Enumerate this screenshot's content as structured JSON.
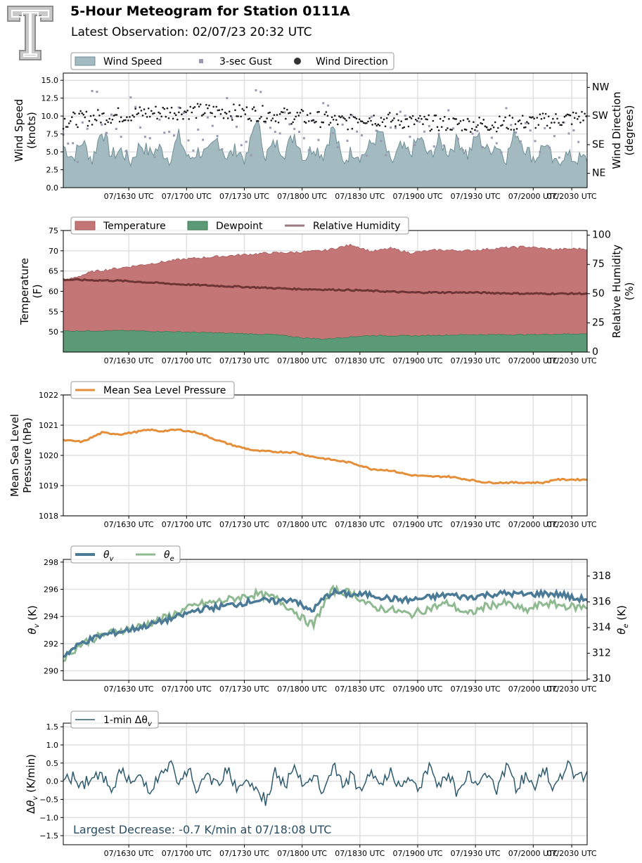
{
  "header": {
    "title": "5-Hour Meteogram for Station 0111A",
    "subtitle": "Latest Observation: 02/07/23 20:32 UTC",
    "logo_letter": "T"
  },
  "colors": {
    "wind_speed": "#a3bac0",
    "wind_speed_edge": "#6f8f97",
    "gust": "#9a98b3",
    "wind_dir": "#1a1a1a",
    "temperature": "#c47576",
    "dewpoint": "#5a9a76",
    "rh": "#6e3535",
    "mslp": "#e58e3a",
    "theta_v": "#4a7a96",
    "theta_e": "#8fba91",
    "dtheta": "#2e5a6e",
    "grid": "#e0e0e0",
    "annotation": "#2b4e62"
  },
  "chart_data": [
    {
      "id": "wind",
      "type": "area",
      "ylabel": "Wind Speed\n(knots)",
      "ylabel2": "Wind Direction\n(degrees)",
      "ylim": [
        0,
        16
      ],
      "yticks": [
        "0.0",
        "2.5",
        "5.0",
        "7.5",
        "10.0",
        "12.5",
        "15.0"
      ],
      "y2lim": [
        0,
        360
      ],
      "y2ticks": [
        "NE",
        "SE",
        "SW",
        "NW"
      ],
      "y2tick_values": [
        45,
        135,
        225,
        315
      ],
      "xtick_labels": [
        "07/1630 UTC",
        "07/1700 UTC",
        "07/1730 UTC",
        "07/1800 UTC",
        "07/1830 UTC",
        "07/1900 UTC",
        "07/1930 UTC",
        "07/2000 UTC",
        "07/2030 UTC"
      ],
      "legend": [
        "Wind Speed",
        "3-sec Gust",
        "Wind Direction"
      ],
      "legend_position": "top-left",
      "grid": true,
      "series": [
        {
          "name": "Wind Speed",
          "x_minutes": [
            0,
            5,
            10,
            15,
            20,
            25,
            30,
            35,
            40,
            45,
            50,
            55,
            60,
            65,
            70,
            75,
            80,
            85,
            90,
            95,
            100,
            105,
            110,
            115,
            120,
            125,
            130,
            135,
            140,
            145,
            150,
            155,
            160,
            165,
            170,
            175,
            180,
            185,
            190,
            195,
            200,
            205,
            210,
            215,
            220,
            225,
            230,
            235,
            240,
            245,
            250,
            255,
            260,
            265
          ],
          "values": [
            5.8,
            4.2,
            6.5,
            3.8,
            8.2,
            4.5,
            5.2,
            3.6,
            6.1,
            4.8,
            5.5,
            4.0,
            7.2,
            3.9,
            5.1,
            4.6,
            6.8,
            4.2,
            5.4,
            3.8,
            9.8,
            4.5,
            6.2,
            5.0,
            7.5,
            4.1,
            5.8,
            4.6,
            8.6,
            3.5,
            5.2,
            4.4,
            6.1,
            7.8,
            3.2,
            5.6,
            4.8,
            7.0,
            4.3,
            6.5,
            5.0,
            6.8,
            4.5,
            7.4,
            5.2,
            6.0,
            4.2,
            7.9,
            5.4,
            4.0,
            6.3,
            3.1,
            4.6,
            4.0
          ]
        },
        {
          "name": "3-sec Gust",
          "values": [
            7.4,
            6.2,
            9.1,
            13.5,
            8.8,
            10.2,
            7.1,
            12.6,
            8.4,
            6.9,
            9.5,
            7.8,
            11.2,
            6.6,
            8.1,
            9.8,
            7.2,
            12.5,
            8.5,
            6.4,
            13.6,
            9.1,
            7.8,
            10.5,
            8.2,
            6.9,
            9.4,
            11.8,
            7.6,
            8.8,
            10.1,
            7.3,
            9.9,
            6.5,
            8.4,
            10.6,
            7.1,
            9.2,
            8.6,
            7.5,
            10.8,
            6.8,
            9.6,
            7.9,
            8.4,
            6.2,
            11.1,
            7.7,
            9.0,
            6.5,
            8.3,
            7.2,
            9.1,
            8.0
          ]
        },
        {
          "name": "Wind Direction",
          "range_degrees": [
            170,
            290
          ]
        }
      ]
    },
    {
      "id": "temp",
      "type": "area",
      "ylabel": "Temperature\n(F)",
      "ylabel2": "Relative Humidity\n(%)",
      "ylim": [
        45,
        75
      ],
      "yticks": [
        "50",
        "55",
        "60",
        "65",
        "70",
        "75"
      ],
      "y2lim": [
        0,
        104
      ],
      "y2ticks": [
        "0",
        "25",
        "50",
        "75",
        "100"
      ],
      "xtick_labels": [
        "07/1630 UTC",
        "07/1700 UTC",
        "07/1730 UTC",
        "07/1800 UTC",
        "07/1830 UTC",
        "07/1900 UTC",
        "07/1930 UTC",
        "07/2000 UTC",
        "07/2030 UTC"
      ],
      "legend": [
        "Temperature",
        "Dewpoint",
        "Relative Humidity"
      ],
      "legend_position": "top-left",
      "grid": true,
      "series": [
        {
          "name": "Temperature",
          "x_minutes": [
            0,
            15,
            30,
            45,
            60,
            75,
            90,
            105,
            120,
            135,
            150,
            160,
            170,
            180,
            195,
            210,
            225,
            240,
            255,
            265
          ],
          "values": [
            62.5,
            64.8,
            65.8,
            66.8,
            67.8,
            68.4,
            68.9,
            69.4,
            69.6,
            70.0,
            71.5,
            69.8,
            70.6,
            69.5,
            70.2,
            70.0,
            70.6,
            71.0,
            70.3,
            70.5
          ]
        },
        {
          "name": "Dewpoint",
          "x_minutes": [
            0,
            30,
            60,
            90,
            110,
            125,
            135,
            150,
            160,
            180,
            210,
            240,
            265
          ],
          "values": [
            50.2,
            50.3,
            50.0,
            49.6,
            49.3,
            48.5,
            48.2,
            48.8,
            49.1,
            49.0,
            49.3,
            49.3,
            49.5
          ]
        },
        {
          "name": "Relative Humidity",
          "x_minutes": [
            0,
            30,
            60,
            90,
            120,
            150,
            180,
            210,
            240,
            265
          ],
          "values": [
            62,
            61,
            58,
            56,
            54,
            53,
            51,
            51,
            50,
            50
          ]
        }
      ]
    },
    {
      "id": "mslp",
      "type": "line",
      "ylabel": "Mean Sea Level\nPressure (hPa)",
      "ylim": [
        1018,
        1022
      ],
      "yticks": [
        "1018",
        "1019",
        "1020",
        "1021",
        "1022"
      ],
      "xtick_labels": [
        "07/1630 UTC",
        "07/1700 UTC",
        "07/1730 UTC",
        "07/1800 UTC",
        "07/1830 UTC",
        "07/1900 UTC",
        "07/1930 UTC",
        "07/2000 UTC",
        "07/2030 UTC"
      ],
      "legend": [
        "Mean Sea Level Pressure"
      ],
      "legend_position": "top-left",
      "grid": true,
      "series": [
        {
          "name": "Mean Sea Level Pressure",
          "x_minutes": [
            0,
            10,
            15,
            20,
            30,
            40,
            45,
            50,
            60,
            70,
            80,
            90,
            100,
            110,
            120,
            130,
            140,
            150,
            160,
            170,
            180,
            190,
            200,
            210,
            220,
            230,
            240,
            250,
            255,
            265
          ],
          "values": [
            1020.5,
            1020.45,
            1020.6,
            1020.75,
            1020.7,
            1020.8,
            1020.85,
            1020.8,
            1020.85,
            1020.75,
            1020.5,
            1020.3,
            1020.15,
            1020.12,
            1020.1,
            1019.95,
            1019.85,
            1019.75,
            1019.55,
            1019.5,
            1019.35,
            1019.3,
            1019.3,
            1019.2,
            1019.1,
            1019.1,
            1019.1,
            1019.1,
            1019.2,
            1019.2
          ]
        }
      ]
    },
    {
      "id": "theta",
      "type": "line",
      "ylabel": "θ_v (K)",
      "ylabel2": "θ_e (K)",
      "ylim": [
        289.3,
        298.2
      ],
      "yticks": [
        "290",
        "292",
        "294",
        "296",
        "298"
      ],
      "y2lim": [
        309.9,
        319.3
      ],
      "y2ticks": [
        "310",
        "312",
        "314",
        "316",
        "318"
      ],
      "xtick_labels": [
        "07/1630 UTC",
        "07/1700 UTC",
        "07/1730 UTC",
        "07/1800 UTC",
        "07/1830 UTC",
        "07/1900 UTC",
        "07/1930 UTC",
        "07/2000 UTC",
        "07/2030 UTC"
      ],
      "legend": [
        "θv",
        "θe"
      ],
      "legend_position": "top-left",
      "grid": true,
      "series": [
        {
          "name": "θv",
          "x_minutes": [
            0,
            10,
            20,
            30,
            40,
            50,
            60,
            70,
            80,
            90,
            100,
            110,
            120,
            125,
            130,
            135,
            140,
            150,
            160,
            170,
            180,
            190,
            200,
            210,
            220,
            230,
            240,
            250,
            260,
            265
          ],
          "values": [
            291.1,
            292.1,
            292.6,
            292.9,
            293.2,
            293.6,
            294.0,
            294.5,
            294.7,
            294.9,
            295.2,
            295.1,
            295.3,
            294.6,
            294.5,
            295.3,
            295.8,
            295.6,
            295.6,
            295.3,
            295.2,
            295.4,
            295.6,
            295.4,
            295.6,
            295.7,
            295.6,
            295.7,
            295.6,
            295.3
          ]
        },
        {
          "name": "θe",
          "x_minutes": [
            0,
            10,
            20,
            30,
            40,
            50,
            60,
            70,
            80,
            90,
            100,
            110,
            120,
            125,
            130,
            135,
            140,
            150,
            160,
            170,
            180,
            190,
            200,
            210,
            220,
            230,
            240,
            250,
            260,
            265
          ],
          "values": [
            311.6,
            312.8,
            313.4,
            313.8,
            314.1,
            314.6,
            315.2,
            315.8,
            316.0,
            316.3,
            316.6,
            316.3,
            315.3,
            314.6,
            314.2,
            315.8,
            316.9,
            316.7,
            315.6,
            315.4,
            315.0,
            315.5,
            315.9,
            315.0,
            315.7,
            315.9,
            315.3,
            315.9,
            315.7,
            315.6
          ]
        }
      ]
    },
    {
      "id": "dtheta",
      "type": "line",
      "ylabel": "Δθ_v (K/min)",
      "ylim": [
        -1.75,
        1.6
      ],
      "yticks": [
        "−1.5",
        "−1.0",
        "−0.5",
        "0.0",
        "0.5",
        "1.0",
        "1.5"
      ],
      "xtick_labels": [
        "07/1630 UTC",
        "07/1700 UTC",
        "07/1730 UTC",
        "07/1800 UTC",
        "07/1830 UTC",
        "07/1900 UTC",
        "07/1930 UTC",
        "07/2000 UTC",
        "07/2030 UTC"
      ],
      "legend": [
        "1-min Δθv"
      ],
      "legend_position": "top-left",
      "grid": true,
      "annotation": "Largest Decrease: -0.7 K/min at 07/18:08 UTC",
      "series": [
        {
          "name": "1-min Δθv",
          "x_minutes": [
            0,
            5,
            10,
            15,
            20,
            25,
            30,
            35,
            40,
            45,
            50,
            55,
            60,
            65,
            70,
            75,
            80,
            85,
            90,
            95,
            100,
            105,
            110,
            115,
            120,
            125,
            130,
            135,
            140,
            145,
            150,
            155,
            160,
            165,
            170,
            175,
            180,
            185,
            190,
            195,
            200,
            205,
            210,
            215,
            220,
            225,
            230,
            235,
            240,
            245,
            250,
            255,
            260,
            265
          ],
          "values": [
            -0.1,
            0.2,
            -0.15,
            0.25,
            0.1,
            -0.2,
            0.35,
            -0.1,
            0.2,
            -0.3,
            0.15,
            0.6,
            -0.2,
            0.4,
            -0.35,
            0.2,
            -0.1,
            0.45,
            -0.2,
            0.1,
            -0.3,
            -0.7,
            0.3,
            -0.15,
            0.4,
            -0.25,
            0.2,
            -0.35,
            0.5,
            -0.1,
            0.15,
            -0.4,
            0.3,
            -0.2,
            0.45,
            -0.3,
            0.1,
            -0.25,
            0.5,
            -0.15,
            0.3,
            -0.4,
            0.2,
            -0.1,
            0.35,
            -0.25,
            0.6,
            -0.3,
            0.2,
            -0.15,
            0.4,
            -0.2,
            0.5,
            0.3
          ]
        }
      ]
    }
  ]
}
